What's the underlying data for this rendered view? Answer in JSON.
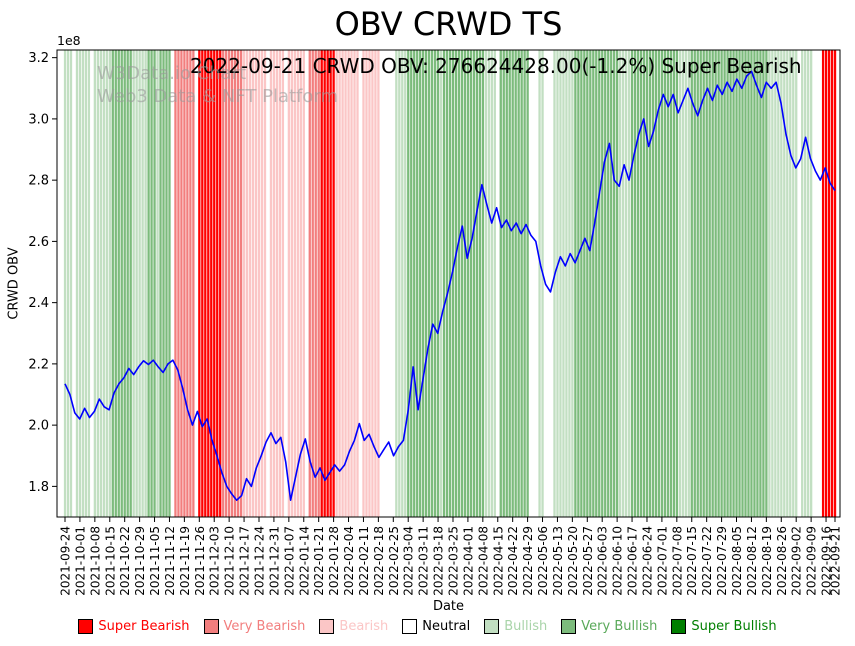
{
  "title": "OBV CRWD TS",
  "annotation": "2022-09-21 CRWD OBV: 276624428.00(-1.2%) Super Bearish",
  "watermark": {
    "line1": "W3Data.io Chart",
    "line2": "Web3 Data & NFT Platform"
  },
  "colors": {
    "line": "#0000ff",
    "super_bearish": "#ff0000",
    "very_bearish": "#f27e7e",
    "bearish": "#fbc6c6",
    "neutral": "#ffffff",
    "bullish": "#c2dfc2",
    "very_bullish": "#7cbb7c",
    "super_bullish": "#007f00"
  },
  "legend": [
    {
      "key": "super_bearish",
      "label": "Super Bearish",
      "text_color": "#ff0000"
    },
    {
      "key": "very_bearish",
      "label": "Very Bearish",
      "text_color": "#f27e7e"
    },
    {
      "key": "bearish",
      "label": "Bearish",
      "text_color": "#fbc6c6"
    },
    {
      "key": "neutral",
      "label": "Neutral",
      "text_color": "#000000"
    },
    {
      "key": "bullish",
      "label": "Bullish",
      "text_color": "#a9d4a9"
    },
    {
      "key": "very_bullish",
      "label": "Very Bullish",
      "text_color": "#5aa95a"
    },
    {
      "key": "super_bullish",
      "label": "Super Bullish",
      "text_color": "#007f00"
    }
  ],
  "chart_data": {
    "type": "line",
    "title": "OBV CRWD TS",
    "xlabel": "Date",
    "ylabel": "CRWD OBV",
    "y_offset_label": "1e8",
    "y_unit_multiplier": 100000000,
    "ylim": [
      1.7,
      3.225
    ],
    "yticks": [
      1.8,
      2.0,
      2.2,
      2.4,
      2.6,
      2.8,
      3.0,
      3.2
    ],
    "grid": false,
    "legend_position": "bottom",
    "x_tick_labels": [
      "2021-09-24",
      "2021-10-01",
      "2021-10-08",
      "2021-10-15",
      "2021-10-22",
      "2021-10-29",
      "2021-11-05",
      "2021-11-12",
      "2021-11-19",
      "2021-11-26",
      "2021-12-03",
      "2021-12-10",
      "2021-12-17",
      "2021-12-24",
      "2021-12-31",
      "2022-01-07",
      "2022-01-14",
      "2022-01-21",
      "2022-01-28",
      "2022-02-04",
      "2022-02-11",
      "2022-02-18",
      "2022-02-25",
      "2022-03-04",
      "2022-03-11",
      "2022-03-18",
      "2022-03-25",
      "2022-04-01",
      "2022-04-08",
      "2022-04-15",
      "2022-04-22",
      "2022-04-29",
      "2022-05-06",
      "2022-05-13",
      "2022-05-20",
      "2022-05-27",
      "2022-06-03",
      "2022-06-10",
      "2022-06-17",
      "2022-06-24",
      "2022-07-01",
      "2022-07-08",
      "2022-07-15",
      "2022-07-22",
      "2022-07-29",
      "2022-08-05",
      "2022-08-12",
      "2022-08-19",
      "2022-08-26",
      "2022-09-02",
      "2022-09-09",
      "2022-09-16",
      "2022-09-21"
    ],
    "last_point": {
      "date": "2022-09-21",
      "obv": 276624428.0,
      "change_pct": -1.2,
      "signal": "Super Bearish"
    },
    "line": {
      "name": "CRWD OBV",
      "unit": "1e8",
      "sampling": "values evenly spaced over trading days between first and last x tick label",
      "values": [
        2.135,
        2.1,
        2.04,
        2.02,
        2.055,
        2.025,
        2.045,
        2.085,
        2.06,
        2.05,
        2.105,
        2.135,
        2.155,
        2.185,
        2.165,
        2.19,
        2.21,
        2.198,
        2.212,
        2.19,
        2.172,
        2.2,
        2.212,
        2.18,
        2.12,
        2.05,
        2.0,
        2.045,
        1.995,
        2.02,
        1.95,
        1.9,
        1.845,
        1.8,
        1.775,
        1.755,
        1.77,
        1.825,
        1.8,
        1.86,
        1.9,
        1.945,
        1.975,
        1.94,
        1.96,
        1.88,
        1.755,
        1.83,
        1.905,
        1.955,
        1.88,
        1.83,
        1.86,
        1.82,
        1.845,
        1.87,
        1.85,
        1.87,
        1.915,
        1.95,
        2.005,
        1.95,
        1.97,
        1.93,
        1.895,
        1.92,
        1.945,
        1.9,
        1.93,
        1.95,
        2.05,
        2.19,
        2.05,
        2.15,
        2.25,
        2.33,
        2.3,
        2.37,
        2.43,
        2.5,
        2.58,
        2.65,
        2.545,
        2.61,
        2.7,
        2.785,
        2.72,
        2.66,
        2.71,
        2.645,
        2.67,
        2.635,
        2.66,
        2.625,
        2.655,
        2.62,
        2.6,
        2.52,
        2.46,
        2.435,
        2.5,
        2.55,
        2.52,
        2.56,
        2.53,
        2.57,
        2.61,
        2.57,
        2.66,
        2.76,
        2.86,
        2.92,
        2.8,
        2.78,
        2.85,
        2.8,
        2.88,
        2.95,
        3.0,
        2.91,
        2.96,
        3.03,
        3.08,
        3.04,
        3.08,
        3.02,
        3.06,
        3.1,
        3.05,
        3.01,
        3.06,
        3.1,
        3.06,
        3.11,
        3.08,
        3.12,
        3.09,
        3.13,
        3.1,
        3.14,
        3.155,
        3.11,
        3.07,
        3.12,
        3.1,
        3.12,
        3.05,
        2.95,
        2.88,
        2.84,
        2.87,
        2.94,
        2.87,
        2.83,
        2.8,
        2.84,
        2.79,
        2.766
      ]
    },
    "bands": [
      [
        "2021-09-24",
        "2021-09-28",
        "bullish"
      ],
      [
        "2021-09-29",
        "2021-09-29",
        "neutral"
      ],
      [
        "2021-09-30",
        "2021-10-06",
        "bullish"
      ],
      [
        "2021-10-07",
        "2021-10-07",
        "neutral"
      ],
      [
        "2021-10-08",
        "2021-10-15",
        "bullish"
      ],
      [
        "2021-10-18",
        "2021-10-26",
        "very_bullish"
      ],
      [
        "2021-10-27",
        "2021-11-02",
        "bullish"
      ],
      [
        "2021-11-03",
        "2021-11-05",
        "very_bullish"
      ],
      [
        "2021-11-08",
        "2021-11-08",
        "bullish"
      ],
      [
        "2021-11-09",
        "2021-11-12",
        "very_bullish"
      ],
      [
        "2021-11-15",
        "2021-11-15",
        "neutral"
      ],
      [
        "2021-11-16",
        "2021-11-24",
        "very_bearish"
      ],
      [
        "2021-11-26",
        "2021-12-07",
        "super_bearish"
      ],
      [
        "2021-12-08",
        "2021-12-16",
        "very_bearish"
      ],
      [
        "2021-12-17",
        "2021-12-28",
        "bearish"
      ],
      [
        "2021-12-29",
        "2021-12-29",
        "neutral"
      ],
      [
        "2021-12-30",
        "2022-01-05",
        "bearish"
      ],
      [
        "2022-01-06",
        "2022-01-06",
        "neutral"
      ],
      [
        "2022-01-07",
        "2022-01-14",
        "bearish"
      ],
      [
        "2022-01-18",
        "2022-01-21",
        "very_bearish"
      ],
      [
        "2022-01-24",
        "2022-01-28",
        "super_bearish"
      ],
      [
        "2022-01-31",
        "2022-02-09",
        "bearish"
      ],
      [
        "2022-02-10",
        "2022-02-10",
        "neutral"
      ],
      [
        "2022-02-11",
        "2022-02-18",
        "bearish"
      ],
      [
        "2022-02-22",
        "2022-02-25",
        "neutral"
      ],
      [
        "2022-02-28",
        "2022-03-03",
        "bullish"
      ],
      [
        "2022-03-04",
        "2022-03-18",
        "very_bullish"
      ],
      [
        "2022-03-21",
        "2022-03-21",
        "bullish"
      ],
      [
        "2022-03-22",
        "2022-04-08",
        "very_bullish"
      ],
      [
        "2022-04-11",
        "2022-04-14",
        "bullish"
      ],
      [
        "2022-04-18",
        "2022-04-29",
        "very_bullish"
      ],
      [
        "2022-05-02",
        "2022-05-04",
        "neutral"
      ],
      [
        "2022-05-05",
        "2022-05-06",
        "bullish"
      ],
      [
        "2022-05-09",
        "2022-05-11",
        "neutral"
      ],
      [
        "2022-05-12",
        "2022-05-20",
        "bullish"
      ],
      [
        "2022-05-23",
        "2022-06-10",
        "very_bullish"
      ],
      [
        "2022-06-13",
        "2022-06-16",
        "bullish"
      ],
      [
        "2022-06-17",
        "2022-07-08",
        "very_bullish"
      ],
      [
        "2022-07-11",
        "2022-07-14",
        "bullish"
      ],
      [
        "2022-07-15",
        "2022-08-19",
        "very_bullish"
      ],
      [
        "2022-08-22",
        "2022-09-02",
        "bullish"
      ],
      [
        "2022-09-06",
        "2022-09-09",
        "bullish"
      ],
      [
        "2022-09-12",
        "2022-09-14",
        "neutral"
      ],
      [
        "2022-09-15",
        "2022-09-21",
        "super_bearish"
      ]
    ]
  }
}
